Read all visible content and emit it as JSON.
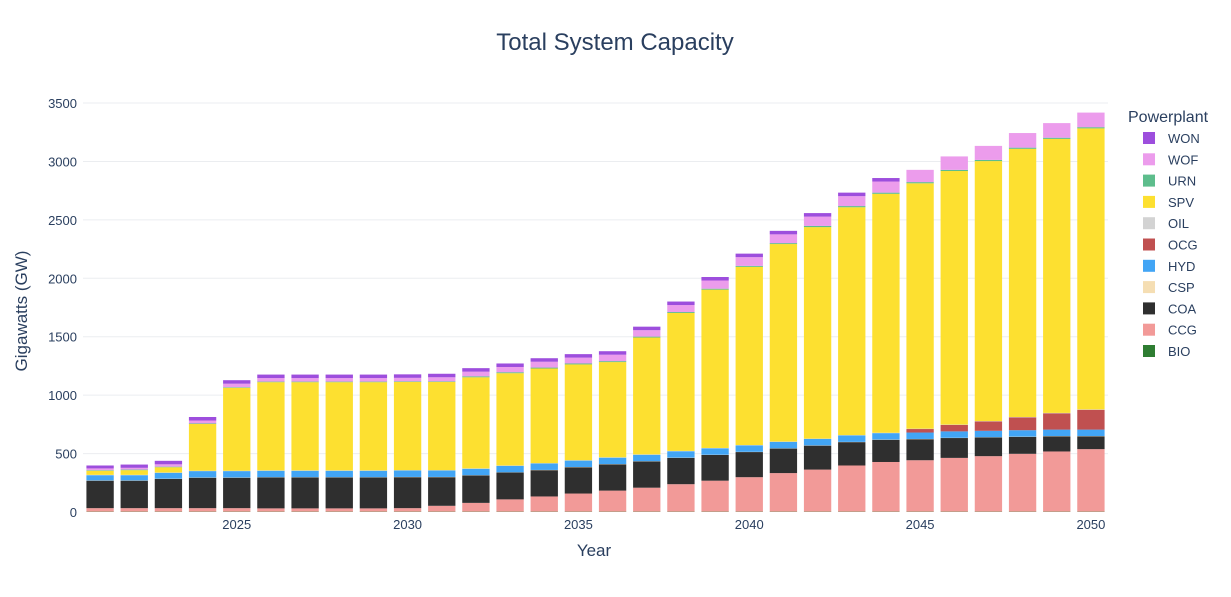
{
  "chart_data": {
    "type": "bar",
    "stacked": true,
    "title": "Total System Capacity",
    "xlabel": "Year",
    "ylabel": "Gigawatts (GW)",
    "ylim": [
      0,
      3560
    ],
    "xlim": [
      2020.5,
      2050.5
    ],
    "yticks": [
      0,
      500,
      1000,
      1500,
      2000,
      2500,
      3000,
      3500
    ],
    "yticklabels": [
      "0",
      "500",
      "1000",
      "1500",
      "2000",
      "2500",
      "3000",
      "3500"
    ],
    "xticks": [
      2025,
      2030,
      2035,
      2040,
      2045,
      2050
    ],
    "xticklabels": [
      "2025",
      "2030",
      "2035",
      "2040",
      "2045",
      "2050"
    ],
    "grid": true,
    "legend_title": "Powerplant",
    "legend_position": "right",
    "legend_order": [
      "WON",
      "WOF",
      "URN",
      "SPV",
      "OIL",
      "OCG",
      "HYD",
      "CSP",
      "COA",
      "CCG",
      "BIO"
    ],
    "stack_order": [
      "BIO",
      "CCG",
      "COA",
      "CSP",
      "HYD",
      "OCG",
      "OIL",
      "SPV",
      "URN",
      "WOF",
      "WON"
    ],
    "x": [
      2021,
      2022,
      2023,
      2024,
      2025,
      2026,
      2027,
      2028,
      2029,
      2030,
      2031,
      2032,
      2033,
      2034,
      2035,
      2036,
      2037,
      2038,
      2039,
      2040,
      2041,
      2042,
      2043,
      2044,
      2045,
      2046,
      2047,
      2048,
      2049,
      2050
    ],
    "series": [
      {
        "name": "BIO",
        "color": "#2e7d32",
        "values": [
          3,
          3,
          3,
          3,
          3,
          3,
          3,
          3,
          3,
          3,
          3,
          3,
          3,
          3,
          3,
          3,
          3,
          3,
          3,
          3,
          3,
          3,
          3,
          3,
          3,
          3,
          3,
          3,
          3,
          3
        ]
      },
      {
        "name": "CCG",
        "color": "#f29a98",
        "values": [
          30,
          30,
          30,
          30,
          30,
          28,
          28,
          28,
          28,
          30,
          50,
          75,
          105,
          130,
          155,
          180,
          205,
          235,
          265,
          295,
          330,
          360,
          395,
          425,
          440,
          460,
          475,
          495,
          515,
          535
        ]
      },
      {
        "name": "COA",
        "color": "#2f2f2f",
        "values": [
          235,
          235,
          250,
          260,
          260,
          265,
          265,
          265,
          265,
          265,
          245,
          235,
          230,
          225,
          225,
          225,
          225,
          225,
          220,
          215,
          210,
          205,
          200,
          190,
          180,
          170,
          160,
          145,
          130,
          110
        ]
      },
      {
        "name": "CSP",
        "color": "#f5deb3",
        "values": [
          2,
          2,
          2,
          2,
          2,
          2,
          2,
          2,
          2,
          2,
          2,
          2,
          2,
          2,
          2,
          2,
          2,
          2,
          2,
          2,
          2,
          2,
          2,
          2,
          2,
          2,
          2,
          2,
          2,
          2
        ]
      },
      {
        "name": "HYD",
        "color": "#42a5f5",
        "values": [
          45,
          45,
          50,
          55,
          55,
          55,
          55,
          55,
          55,
          55,
          55,
          55,
          55,
          55,
          55,
          55,
          55,
          55,
          55,
          55,
          55,
          55,
          55,
          55,
          55,
          55,
          55,
          55,
          55,
          55
        ]
      },
      {
        "name": "OCG",
        "color": "#c05050",
        "values": [
          0,
          0,
          0,
          0,
          0,
          0,
          0,
          0,
          0,
          0,
          0,
          0,
          0,
          0,
          0,
          0,
          0,
          0,
          0,
          0,
          0,
          0,
          0,
          0,
          30,
          55,
          80,
          110,
          140,
          170
        ]
      },
      {
        "name": "OIL",
        "color": "#d3d3d3",
        "values": [
          3,
          3,
          3,
          3,
          3,
          3,
          3,
          3,
          3,
          3,
          3,
          3,
          3,
          3,
          3,
          3,
          3,
          3,
          3,
          3,
          3,
          3,
          3,
          3,
          3,
          3,
          3,
          3,
          3,
          3
        ]
      },
      {
        "name": "SPV",
        "color": "#fde030",
        "values": [
          35,
          40,
          45,
          400,
          710,
          755,
          755,
          755,
          755,
          755,
          755,
          780,
          790,
          810,
          820,
          815,
          1000,
          1180,
          1355,
          1525,
          1690,
          1810,
          1950,
          2045,
          2100,
          2170,
          2225,
          2295,
          2345,
          2405
        ]
      },
      {
        "name": "URN",
        "color": "#5dbd8c",
        "values": [
          5,
          5,
          5,
          5,
          5,
          5,
          5,
          5,
          5,
          5,
          5,
          8,
          8,
          8,
          8,
          8,
          8,
          8,
          8,
          8,
          8,
          10,
          10,
          10,
          10,
          10,
          10,
          10,
          10,
          10
        ]
      },
      {
        "name": "WOF",
        "color": "#ec9cec",
        "values": [
          15,
          15,
          20,
          25,
          30,
          30,
          30,
          30,
          30,
          30,
          35,
          40,
          45,
          50,
          50,
          55,
          55,
          60,
          70,
          75,
          75,
          80,
          85,
          95,
          105,
          115,
          120,
          125,
          125,
          125
        ]
      },
      {
        "name": "WON",
        "color": "#9d4edd",
        "values": [
          25,
          28,
          30,
          30,
          30,
          30,
          30,
          30,
          30,
          30,
          30,
          30,
          30,
          30,
          30,
          30,
          30,
          30,
          30,
          30,
          30,
          30,
          30,
          30,
          0,
          0,
          0,
          0,
          0,
          0
        ]
      }
    ]
  }
}
